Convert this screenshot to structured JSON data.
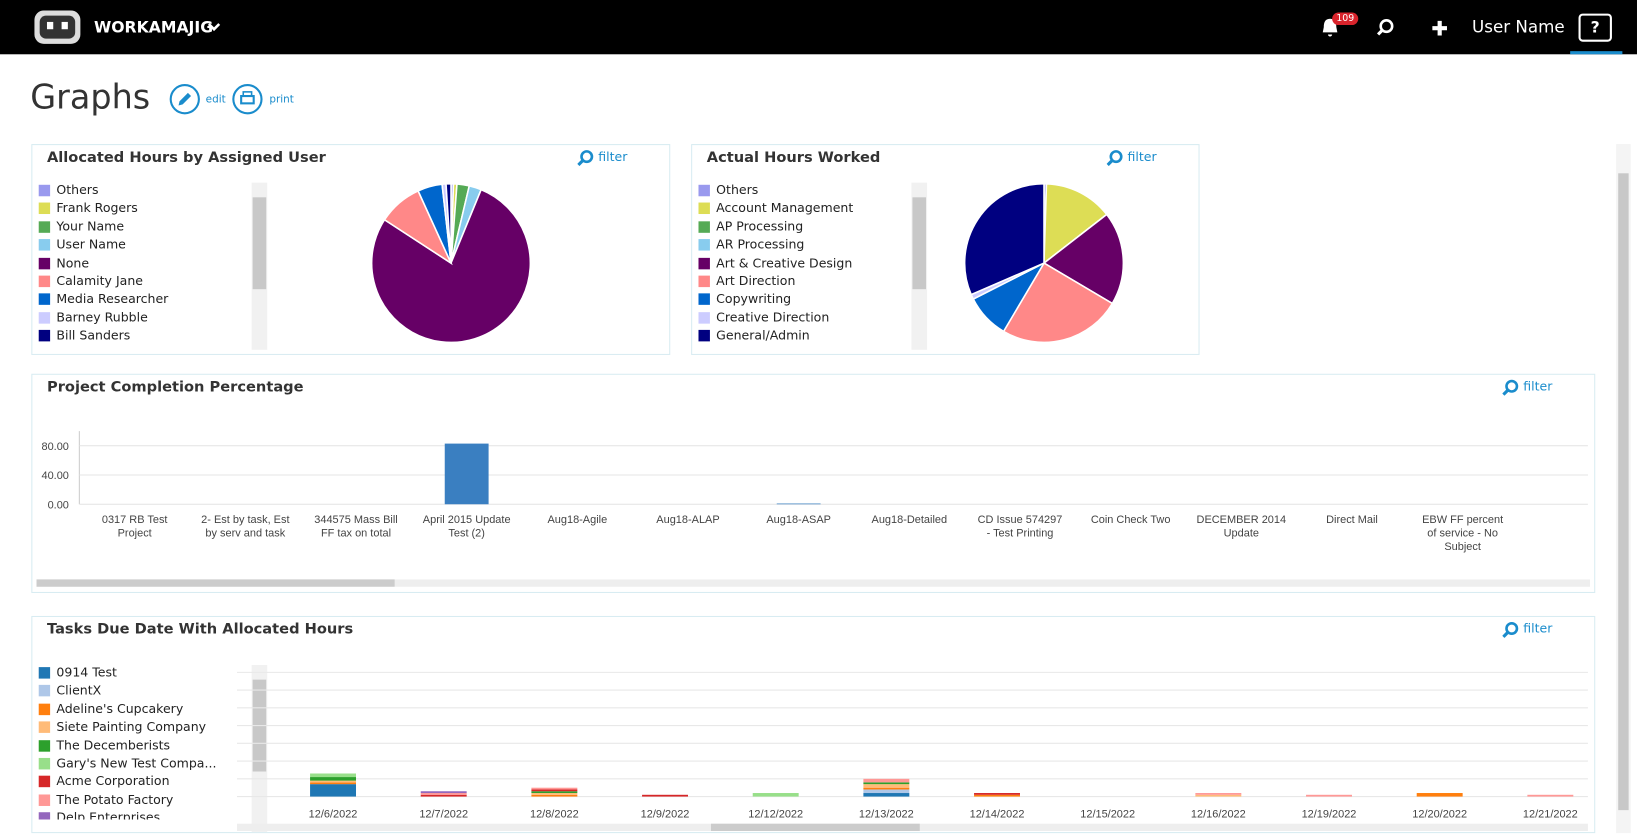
{
  "header": {
    "brand": "WORKAMAJIG",
    "notifications": "109",
    "user": "User Name",
    "help": "?"
  },
  "page": {
    "title": "Graphs",
    "actions": [
      "edit",
      "print"
    ]
  },
  "panels": [
    {
      "title": "Allocated Hours by Assigned User",
      "filter": "filter",
      "chart": {
        "type": "pie",
        "labels": [
          "Others",
          "Frank Rogers",
          "Your Name",
          "User Name",
          "None",
          "Calamity Jane",
          "Media Researcher",
          "Barney Rubble",
          "Bill Sanders"
        ],
        "colors": [
          "#9999ee",
          "#dddd55",
          "#55aa55",
          "#88ccee",
          "#660066",
          "#ff8888",
          "#0066cc",
          "#ccccff",
          "#000080"
        ],
        "values": [
          0.5,
          0.7,
          2.5,
          2.5,
          78,
          9,
          5,
          0.8,
          1
        ]
      }
    },
    {
      "title": "Actual Hours Worked",
      "filter": "filter",
      "chart": {
        "type": "pie",
        "labels": [
          "Others",
          "Account Management",
          "AP Processing",
          "AR Processing",
          "Art & Creative Design",
          "Art Direction",
          "Copywriting",
          "Creative Direction",
          "General/Admin"
        ],
        "colors": [
          "#9999ee",
          "#dddd55",
          "#55aa55",
          "#88ccee",
          "#660066",
          "#ff8888",
          "#0066cc",
          "#ccccff",
          "#000080"
        ],
        "values": [
          0.5,
          14,
          0,
          0,
          19,
          25,
          9,
          1,
          31.5
        ]
      }
    },
    {
      "title": "Project Completion Percentage",
      "filter": "filter",
      "chart": {
        "type": "bar",
        "categories": [
          "0317 RB Test Project",
          "2- Est by task, Est by serv and task",
          "344575 Mass Bill FF tax on total",
          "April 2015 Update Test (2)",
          "Aug18-Agile",
          "Aug18-ALAP",
          "Aug18-ASAP",
          "Aug18-Detailed",
          "CD Issue 574297 - Test Printing",
          "Coin Check Two",
          "DECEMBER 2014 Update",
          "Direct Mail",
          "EBW FF percent of service - No Subject"
        ],
        "values": [
          0,
          0,
          0,
          83,
          0,
          0,
          1,
          0,
          0,
          0,
          0,
          0,
          0
        ],
        "color": "#3a7fc1",
        "ylim": [
          0,
          100
        ],
        "yticks": [
          {
            "value": 0,
            "label": "0.00"
          },
          {
            "value": 40,
            "label": "40.00"
          },
          {
            "value": 80,
            "label": "80.00"
          }
        ],
        "grid": true
      }
    },
    {
      "title": "Tasks Due Date With Allocated Hours",
      "filter": "filter",
      "chart": {
        "type": "stacked-bar",
        "categories": [
          "12/6/2022",
          "12/7/2022",
          "12/8/2022",
          "12/9/2022",
          "12/12/2022",
          "12/13/2022",
          "12/14/2022",
          "12/15/2022",
          "12/16/2022",
          "12/19/2022",
          "12/20/2022",
          "12/21/2022"
        ],
        "ylim": [
          0,
          70
        ],
        "series": [
          {
            "name": "0914 Test",
            "color": "#1f77b4",
            "values": [
              7,
              0,
              0,
              0,
              0,
              2,
              0,
              0,
              0,
              0,
              0,
              0
            ]
          },
          {
            "name": "ClientX",
            "color": "#aec7e8",
            "values": [
              0,
              0,
              0,
              0,
              0,
              2,
              0,
              0,
              0,
              0,
              0,
              0
            ]
          },
          {
            "name": "Adeline's Cupcakery",
            "color": "#ff7f0e",
            "values": [
              1,
              0,
              1,
              0,
              0,
              1,
              1,
              0,
              0,
              0,
              2,
              0
            ]
          },
          {
            "name": "Siete Painting Company",
            "color": "#ffbb78",
            "values": [
              1,
              0,
              1,
              0,
              0,
              2,
              0,
              0,
              1,
              0,
              0,
              0
            ]
          },
          {
            "name": "The Decemberists",
            "color": "#2ca02c",
            "values": [
              2,
              0,
              1,
              0,
              0,
              1,
              0,
              0,
              0,
              0,
              0,
              0
            ]
          },
          {
            "name": "Gary's New Test Compa...",
            "color": "#98df8a",
            "values": [
              2,
              0,
              0,
              0,
              2,
              0,
              0,
              0,
              0,
              0,
              0,
              0
            ]
          },
          {
            "name": "Acme Corporation",
            "color": "#d62728",
            "values": [
              0,
              1,
              1,
              1,
              0,
              0,
              1,
              0,
              0,
              0,
              0,
              0
            ]
          },
          {
            "name": "The Potato Factory",
            "color": "#ff9896",
            "values": [
              0,
              1,
              1,
              0,
              0,
              2,
              0,
              0,
              1,
              1,
              0,
              1
            ]
          },
          {
            "name": "Delp Enterprises",
            "color": "#9467bd",
            "values": [
              0,
              1,
              0,
              0,
              0,
              0,
              0,
              0,
              0,
              0,
              0,
              0
            ]
          }
        ]
      }
    }
  ]
}
